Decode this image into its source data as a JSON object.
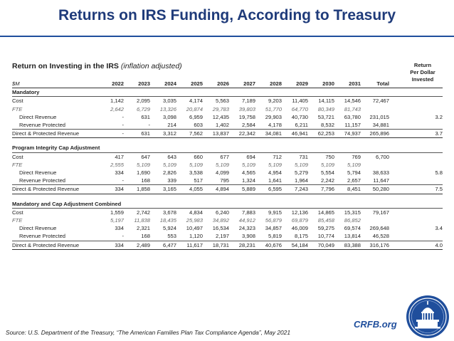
{
  "slide": {
    "title": "Returns on IRS Funding, According to Treasury",
    "source": "Source: U.S. Department of the Treasury, “The American Families Plan Tax Compliance Agenda”, May 2021",
    "org_url": "CRFB.org",
    "logo_icon": "capitol-dome-seal",
    "accent_color": "#1f4e9c"
  },
  "chart_data": {
    "type": "table",
    "title": "Return on Investing in the IRS",
    "subtitle": "(inflation adjusted)",
    "return_header": [
      "Return",
      "Per Dollar",
      "Invested"
    ],
    "columns": [
      "$M",
      "2022",
      "2023",
      "2024",
      "2025",
      "2026",
      "2027",
      "2028",
      "2029",
      "2030",
      "2031",
      "Total",
      ""
    ],
    "sections": [
      {
        "name": "Mandatory",
        "rows": [
          {
            "label": "Cost",
            "kind": "plain",
            "cells": [
              "1,142",
              "2,095",
              "3,035",
              "4,174",
              "5,563",
              "7,189",
              "9,203",
              "11,405",
              "14,115",
              "14,546",
              "72,467",
              ""
            ]
          },
          {
            "label": "FTE",
            "kind": "fte",
            "cells": [
              "2,642",
              "6,729",
              "13,326",
              "20,874",
              "29,783",
              "39,803",
              "51,770",
              "64,770",
              "80,349",
              "81,743",
              "",
              ""
            ]
          },
          {
            "label": "Direct Revenue",
            "kind": "indent",
            "cells": [
              "-",
              "631",
              "3,098",
              "6,959",
              "12,435",
              "19,758",
              "29,903",
              "40,730",
              "53,721",
              "63,780",
              "231,015",
              "3.2"
            ]
          },
          {
            "label": "Revenue Protected",
            "kind": "indent",
            "cells": [
              "-",
              "-",
              "214",
              "603",
              "1,402",
              "2,584",
              "4,178",
              "6,211",
              "8,532",
              "11,157",
              "34,881",
              ""
            ]
          },
          {
            "label": "Direct & Protected Revenue",
            "kind": "total",
            "cells": [
              "-",
              "631",
              "3,312",
              "7,562",
              "13,837",
              "22,342",
              "34,081",
              "46,941",
              "62,253",
              "74,937",
              "265,896",
              "3.7"
            ]
          }
        ]
      },
      {
        "name": "Program Integrity Cap Adjustment",
        "rows": [
          {
            "label": "Cost",
            "kind": "plain",
            "cells": [
              "417",
              "647",
              "643",
              "660",
              "677",
              "694",
              "712",
              "731",
              "750",
              "769",
              "6,700",
              ""
            ]
          },
          {
            "label": "FTE",
            "kind": "fte",
            "cells": [
              "2,555",
              "5,109",
              "5,109",
              "5,109",
              "5,109",
              "5,109",
              "5,109",
              "5,109",
              "5,109",
              "5,109",
              "",
              ""
            ]
          },
          {
            "label": "Direct Revenue",
            "kind": "indent",
            "cells": [
              "334",
              "1,690",
              "2,826",
              "3,538",
              "4,099",
              "4,565",
              "4,954",
              "5,279",
              "5,554",
              "5,794",
              "38,633",
              "5.8"
            ]
          },
          {
            "label": "Revenue Protected",
            "kind": "indent",
            "cells": [
              "-",
              "168",
              "339",
              "517",
              "795",
              "1,324",
              "1,641",
              "1,964",
              "2,242",
              "2,657",
              "11,647",
              ""
            ]
          },
          {
            "label": "Direct & Protected Revenue",
            "kind": "total",
            "cells": [
              "334",
              "1,858",
              "3,165",
              "4,055",
              "4,894",
              "5,889",
              "6,595",
              "7,243",
              "7,796",
              "8,451",
              "50,280",
              "7.5"
            ]
          }
        ]
      },
      {
        "name": "Mandatory and Cap Adjustment Combined",
        "rows": [
          {
            "label": "Cost",
            "kind": "plain",
            "cells": [
              "1,559",
              "2,742",
              "3,678",
              "4,834",
              "6,240",
              "7,883",
              "9,915",
              "12,136",
              "14,865",
              "15,315",
              "79,167",
              ""
            ]
          },
          {
            "label": "FTE",
            "kind": "fte",
            "cells": [
              "5,197",
              "11,838",
              "18,435",
              "25,983",
              "34,892",
              "44,912",
              "56,879",
              "69,879",
              "85,458",
              "86,852",
              "",
              ""
            ]
          },
          {
            "label": "Direct Revenue",
            "kind": "indent",
            "cells": [
              "334",
              "2,321",
              "5,924",
              "10,497",
              "16,534",
              "24,323",
              "34,857",
              "46,009",
              "59,275",
              "69,574",
              "269,648",
              "3.4"
            ]
          },
          {
            "label": "Revenue Protected",
            "kind": "indent",
            "cells": [
              "-",
              "168",
              "553",
              "1,120",
              "2,197",
              "3,908",
              "5,819",
              "8,175",
              "10,774",
              "13,814",
              "46,528",
              ""
            ]
          },
          {
            "label": "Direct & Protected Revenue",
            "kind": "total",
            "cells": [
              "334",
              "2,489",
              "6,477",
              "11,617",
              "18,731",
              "28,231",
              "40,676",
              "54,184",
              "70,049",
              "83,388",
              "316,176",
              "4.0"
            ]
          }
        ]
      }
    ]
  }
}
